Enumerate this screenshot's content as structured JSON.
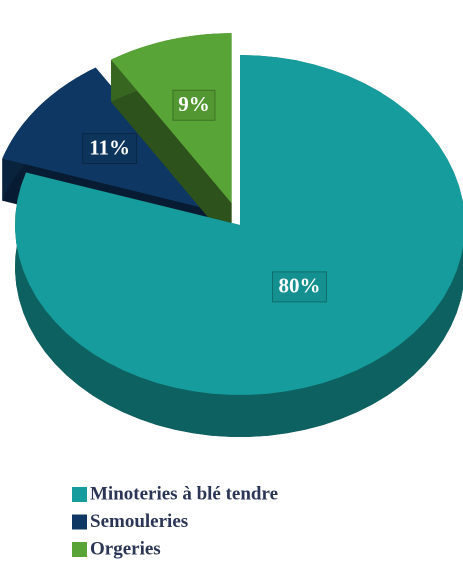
{
  "chart_data": {
    "type": "pie",
    "categories": [
      "Minoteries à blé tendre",
      "Semouleries",
      "Orgeries"
    ],
    "values": [
      80,
      11,
      9
    ],
    "value_labels": [
      "80%",
      "11%",
      "9%"
    ],
    "colors": [
      "#169c9c",
      "#0e3863",
      "#59a436"
    ],
    "legend": "bottom"
  }
}
